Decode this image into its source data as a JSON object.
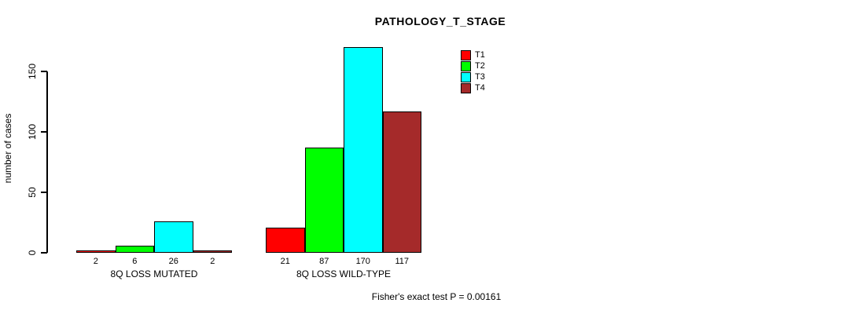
{
  "page": {
    "background": "#FFFFFF"
  },
  "chart_data": {
    "type": "bar",
    "title": "PATHOLOGY_T_STAGE",
    "ylabel": "number of cases",
    "xlabel": "",
    "categories": [
      "8Q LOSS MUTATED",
      "8Q LOSS WILD-TYPE"
    ],
    "series": [
      {
        "name": "T1",
        "color": "#FF0000",
        "values": [
          2,
          21
        ]
      },
      {
        "name": "T2",
        "color": "#00FF00",
        "values": [
          6,
          87
        ]
      },
      {
        "name": "T3",
        "color": "#00FFFF",
        "values": [
          26,
          170
        ]
      },
      {
        "name": "T4",
        "color": "#A52A2A",
        "values": [
          2,
          117
        ]
      }
    ],
    "bar_value_labels": [
      [
        "2",
        "6",
        "26",
        "2"
      ],
      [
        "21",
        "87",
        "170",
        "117"
      ]
    ],
    "ylim": [
      0,
      170
    ],
    "yticks": [
      0,
      50,
      100,
      150
    ],
    "grid": false,
    "legend_position": "top-right",
    "annotation": "Fisher's exact test P = 0.00161"
  }
}
